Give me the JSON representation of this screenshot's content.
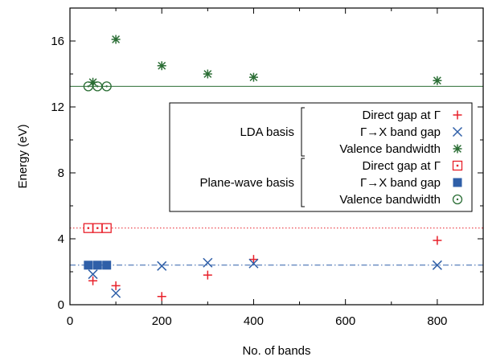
{
  "chart_data": {
    "type": "scatter",
    "title": "",
    "xlabel": "No. of bands",
    "ylabel": "Energy (eV)",
    "xlim": [
      0,
      900
    ],
    "ylim": [
      0,
      18
    ],
    "xticks": [
      0,
      200,
      400,
      600,
      800
    ],
    "yticks": [
      0,
      4,
      8,
      12,
      16
    ],
    "grid": false,
    "legend_position": "center-right",
    "legend_groups": [
      {
        "label": "LDA basis",
        "entries": [
          0,
          1,
          2
        ]
      },
      {
        "label": "Plane-wave basis",
        "entries": [
          3,
          4,
          5
        ]
      }
    ],
    "series": [
      {
        "name": "Direct gap at Γ",
        "marker": "plus",
        "color": "#e8202a",
        "x": [
          50,
          100,
          200,
          300,
          400,
          800
        ],
        "y": [
          1.45,
          1.15,
          0.5,
          1.8,
          2.75,
          3.9
        ]
      },
      {
        "name": "Γ→X band gap",
        "marker": "cross",
        "color": "#2f5fa8",
        "x": [
          50,
          100,
          200,
          300,
          400,
          800
        ],
        "y": [
          1.85,
          0.7,
          2.35,
          2.55,
          2.5,
          2.4
        ]
      },
      {
        "name": "Valence bandwidth",
        "marker": "star",
        "color": "#2b6e35",
        "x": [
          50,
          100,
          200,
          300,
          400,
          800
        ],
        "y": [
          13.5,
          16.1,
          14.5,
          14.0,
          13.8,
          13.6
        ]
      },
      {
        "name": "Direct gap at Γ",
        "marker": "dotted-square",
        "color": "#e8202a",
        "x": [
          40,
          60,
          80
        ],
        "y": [
          4.65,
          4.65,
          4.65
        ]
      },
      {
        "name": "Γ→X band gap",
        "marker": "filled-square",
        "color": "#2f5fa8",
        "x": [
          40,
          60,
          80
        ],
        "y": [
          2.4,
          2.4,
          2.4
        ]
      },
      {
        "name": "Valence bandwidth",
        "marker": "dotted-circle",
        "color": "#2b6e35",
        "x": [
          40,
          60,
          80
        ],
        "y": [
          13.25,
          13.25,
          13.25
        ]
      }
    ],
    "reference_lines": [
      {
        "y": 13.25,
        "style": "solid",
        "color": "#2b6e35"
      },
      {
        "y": 4.65,
        "style": "dotted",
        "color": "#e8202a"
      },
      {
        "y": 2.4,
        "style": "dash-dot",
        "color": "#2f5fa8"
      }
    ]
  }
}
